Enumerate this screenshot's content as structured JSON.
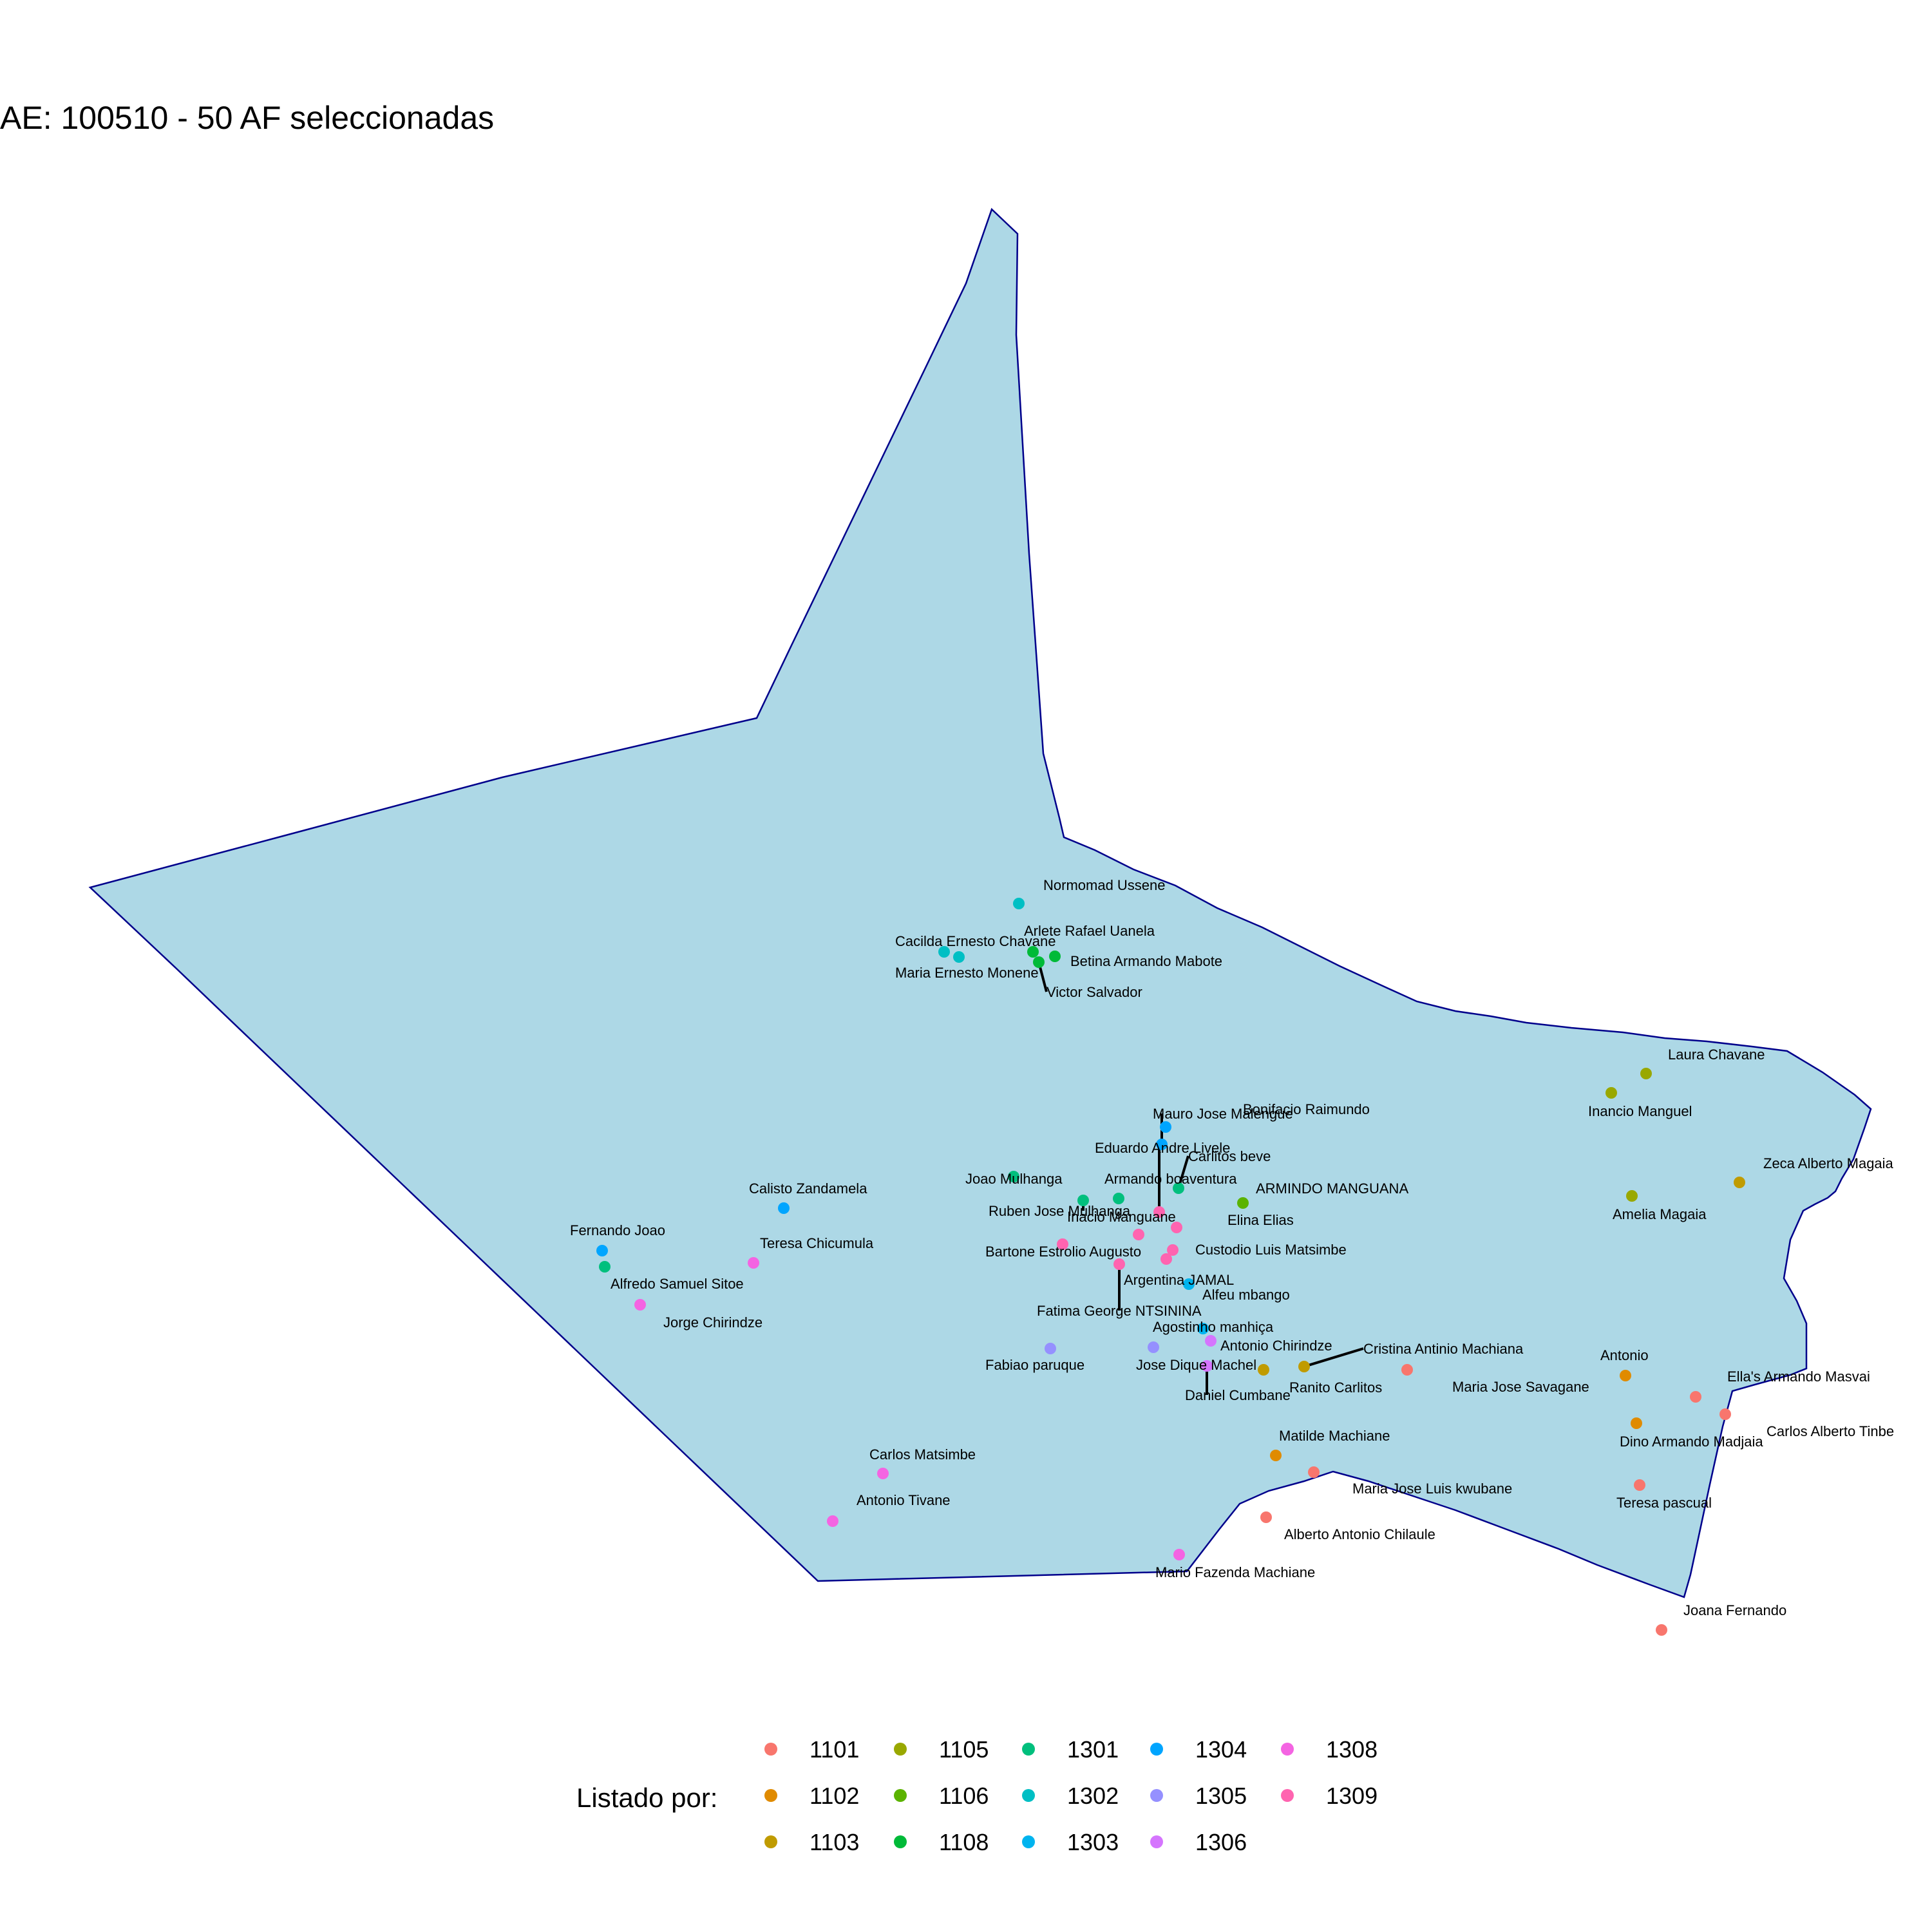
{
  "title": "AE: 100510 - 50  AF seleccionadas",
  "colors": {
    "area_fill": "#add8e6",
    "area_stroke": "#00008b",
    "leader": "#000000"
  },
  "legend": {
    "title": "Listado por:",
    "codes": [
      {
        "code": "1101",
        "color": "#F8766D"
      },
      {
        "code": "1102",
        "color": "#E08B00"
      },
      {
        "code": "1103",
        "color": "#C09B00"
      },
      {
        "code": "1105",
        "color": "#99A800"
      },
      {
        "code": "1106",
        "color": "#5BB300"
      },
      {
        "code": "1108",
        "color": "#00BA38"
      },
      {
        "code": "1301",
        "color": "#00BF7D"
      },
      {
        "code": "1302",
        "color": "#00BFC4"
      },
      {
        "code": "1303",
        "color": "#00B4EF"
      },
      {
        "code": "1304",
        "color": "#00A5FF"
      },
      {
        "code": "1305",
        "color": "#9590FF"
      },
      {
        "code": "1306",
        "color": "#D575FE"
      },
      {
        "code": "1308",
        "color": "#F464E2"
      },
      {
        "code": "1309",
        "color": "#FF64B0"
      }
    ]
  },
  "points": [
    {
      "name": "Normomad Ussene",
      "code": "1302"
    },
    {
      "name": "Cacilda Ernesto  Chavane",
      "code": "1302"
    },
    {
      "name": "Maria Ernesto Monene",
      "code": "1302"
    },
    {
      "name": "Arlete Rafael Uanela",
      "code": "1108"
    },
    {
      "name": "Betina Armando Mabote",
      "code": "1108"
    },
    {
      "name": "Victor Salvador",
      "code": "1108"
    },
    {
      "name": "Laura Chavane",
      "code": "1105"
    },
    {
      "name": "Inancio Manguel",
      "code": "1105"
    },
    {
      "name": "Amelia Magaia",
      "code": "1105"
    },
    {
      "name": "Zeca Alberto Magaia",
      "code": "1103"
    },
    {
      "name": "Bonifacio Raimundo",
      "code": "1304"
    },
    {
      "name": "Mauro Jose Malengue",
      "code": "1304"
    },
    {
      "name": "Eduardo  Andre  Livele",
      "code": "1309"
    },
    {
      "name": "Carlitos beve",
      "code": "1301"
    },
    {
      "name": "Joao Mulhanga",
      "code": "1301"
    },
    {
      "name": "Armando boaventura",
      "code": "1301"
    },
    {
      "name": "Ruben Jose Mulhanga",
      "code": "1301"
    },
    {
      "name": "ARMINDO MANGUANA",
      "code": "1106"
    },
    {
      "name": "Calisto Zandamela",
      "code": "1304"
    },
    {
      "name": "Inacio Manguane",
      "code": "1309"
    },
    {
      "name": "Elina  Elias",
      "code": "1309"
    },
    {
      "name": "Bartone Estrolio Augusto",
      "code": "1309"
    },
    {
      "name": "Custodio Luis Matsimbe",
      "code": "1309"
    },
    {
      "name": "Argentina JAMAL",
      "code": "1309"
    },
    {
      "name": "Fatima George  NTSININA",
      "code": "1309"
    },
    {
      "name": "Alfeu mbango",
      "code": "1303"
    },
    {
      "name": "Fernando Joao",
      "code": "1304"
    },
    {
      "name": "Alfredo Samuel Sitoe",
      "code": "1301"
    },
    {
      "name": "Jorge Chirindze",
      "code": "1308"
    },
    {
      "name": "Teresa Chicumula",
      "code": "1308"
    },
    {
      "name": "Agostinho manhiça",
      "code": "1303"
    },
    {
      "name": "Antonio Chirindze",
      "code": "1306"
    },
    {
      "name": "Fabiao paruque",
      "code": "1305"
    },
    {
      "name": "Jose Dique Machel",
      "code": "1305"
    },
    {
      "name": "Daniel Cumbane",
      "code": "1306"
    },
    {
      "name": "Ranito Carlitos",
      "code": "1103"
    },
    {
      "name": "Cristina Antinio Machiana",
      "code": "1103"
    },
    {
      "name": "Maria Jose Savagane",
      "code": "1101"
    },
    {
      "name": "Antonio",
      "code": "1102"
    },
    {
      "name": "Ella's Armando Masvai",
      "code": "1101"
    },
    {
      "name": "Carlos Alberto Tinbe",
      "code": "1101"
    },
    {
      "name": "Dino Armando Madjaia",
      "code": "1102"
    },
    {
      "name": "Teresa pascual",
      "code": "1101"
    },
    {
      "name": "Matilde Machiane",
      "code": "1102"
    },
    {
      "name": "Maria Jose Luis kwubane",
      "code": "1101"
    },
    {
      "name": "Alberto Antonio Chilaule",
      "code": "1101"
    },
    {
      "name": "Mario Fazenda Machiane",
      "code": "1308"
    },
    {
      "name": "Carlos Matsimbe",
      "code": "1308"
    },
    {
      "name": "Antonio Tivane",
      "code": "1308"
    },
    {
      "name": "Joana Fernando",
      "code": "1101"
    }
  ]
}
